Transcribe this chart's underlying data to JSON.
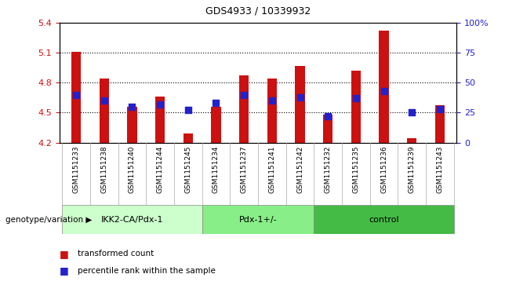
{
  "title": "GDS4933 / 10339932",
  "samples": [
    "GSM1151233",
    "GSM1151238",
    "GSM1151240",
    "GSM1151244",
    "GSM1151245",
    "GSM1151234",
    "GSM1151237",
    "GSM1151241",
    "GSM1151242",
    "GSM1151232",
    "GSM1151235",
    "GSM1151236",
    "GSM1151239",
    "GSM1151243"
  ],
  "transformed_counts": [
    5.11,
    4.84,
    4.56,
    4.66,
    4.29,
    4.56,
    4.87,
    4.84,
    4.97,
    4.48,
    4.92,
    5.32,
    4.24,
    4.57
  ],
  "percentile_ranks": [
    40,
    35,
    30,
    32,
    27,
    33,
    40,
    35,
    38,
    22,
    37,
    43,
    25,
    28
  ],
  "groups": [
    {
      "label": "IKK2-CA/Pdx-1",
      "start": 0,
      "end": 5,
      "color": "#ccffcc"
    },
    {
      "label": "Pdx-1+/-",
      "start": 5,
      "end": 9,
      "color": "#88ee88"
    },
    {
      "label": "control",
      "start": 9,
      "end": 14,
      "color": "#44bb44"
    }
  ],
  "ylim_left": [
    4.2,
    5.4
  ],
  "ylim_right": [
    0,
    100
  ],
  "yticks_left": [
    4.2,
    4.5,
    4.8,
    5.1,
    5.4
  ],
  "yticks_right": [
    0,
    25,
    50,
    75,
    100
  ],
  "ytick_labels_right": [
    "0",
    "25",
    "50",
    "75",
    "100%"
  ],
  "bar_color": "#cc1111",
  "dot_color": "#2222cc",
  "bar_width": 0.35,
  "dot_size": 30,
  "bg_color": "#ffffff",
  "tick_area_color": "#cccccc",
  "genotype_label": "genotype/variation",
  "legend_items": [
    {
      "color": "#cc1111",
      "label": "transformed count"
    },
    {
      "color": "#2222cc",
      "label": "percentile rank within the sample"
    }
  ]
}
